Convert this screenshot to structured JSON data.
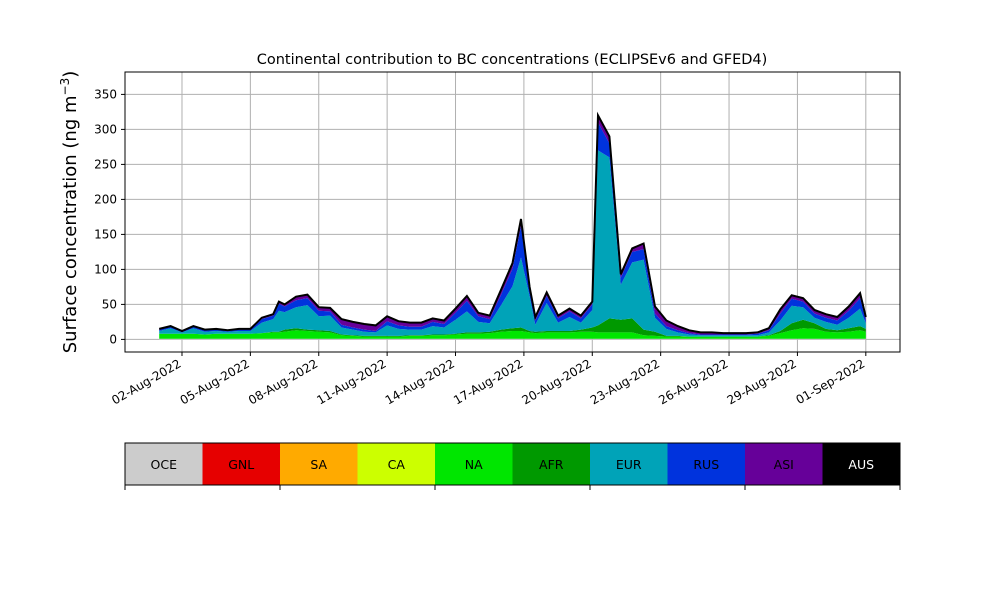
{
  "chart_data": {
    "type": "area",
    "title": "Continental contribution to BC concentrations (ECLIPSEv6 and GFED4)",
    "ylabel": "Surface concentration (ng m",
    "ylabel_sup": "−3",
    "ylabel_close": ")",
    "xlabel": "",
    "stacked": true,
    "grid": true,
    "ylim": [
      -18,
      382
    ],
    "xlim": [
      "2022-07-30T12:00",
      "2022-09-02T12:00"
    ],
    "yticks": [
      0,
      50,
      100,
      150,
      200,
      250,
      300,
      350
    ],
    "xticks": [
      "02-Aug-2022",
      "05-Aug-2022",
      "08-Aug-2022",
      "11-Aug-2022",
      "14-Aug-2022",
      "17-Aug-2022",
      "20-Aug-2022",
      "23-Aug-2022",
      "26-Aug-2022",
      "29-Aug-2022",
      "01-Sep-2022"
    ],
    "xtick_dates": [
      "2022-08-02",
      "2022-08-05",
      "2022-08-08",
      "2022-08-11",
      "2022-08-14",
      "2022-08-17",
      "2022-08-20",
      "2022-08-23",
      "2022-08-26",
      "2022-08-29",
      "2022-09-01"
    ],
    "legend": {
      "placement": "below",
      "entries": [
        {
          "name": "OCE",
          "color": "#cccccc",
          "text_color": "#000000"
        },
        {
          "name": "GNL",
          "color": "#e60000",
          "text_color": "#000000"
        },
        {
          "name": "SA",
          "color": "#ffaa00",
          "text_color": "#000000"
        },
        {
          "name": "CA",
          "color": "#ccff00",
          "text_color": "#000000"
        },
        {
          "name": "NA",
          "color": "#00e600",
          "text_color": "#000000"
        },
        {
          "name": "AFR",
          "color": "#009900",
          "text_color": "#000000"
        },
        {
          "name": "EUR",
          "color": "#00a3b8",
          "text_color": "#000000"
        },
        {
          "name": "RUS",
          "color": "#0033dd",
          "text_color": "#000000"
        },
        {
          "name": "ASI",
          "color": "#660099",
          "text_color": "#000000"
        },
        {
          "name": "AUS",
          "color": "#000000",
          "text_color": "#ffffff"
        }
      ]
    },
    "x": [
      "2022-08-01T00:00",
      "2022-08-01T12:00",
      "2022-08-02T00:00",
      "2022-08-02T12:00",
      "2022-08-03T00:00",
      "2022-08-03T12:00",
      "2022-08-04T00:00",
      "2022-08-04T12:00",
      "2022-08-05T00:00",
      "2022-08-05T12:00",
      "2022-08-06T00:00",
      "2022-08-06T06:00",
      "2022-08-06T12:00",
      "2022-08-07T00:00",
      "2022-08-07T12:00",
      "2022-08-08T00:00",
      "2022-08-08T12:00",
      "2022-08-09T00:00",
      "2022-08-09T12:00",
      "2022-08-10T00:00",
      "2022-08-10T12:00",
      "2022-08-11T00:00",
      "2022-08-11T12:00",
      "2022-08-12T00:00",
      "2022-08-12T12:00",
      "2022-08-13T00:00",
      "2022-08-13T12:00",
      "2022-08-14T00:00",
      "2022-08-14T12:00",
      "2022-08-15T00:00",
      "2022-08-15T12:00",
      "2022-08-16T00:00",
      "2022-08-16T12:00",
      "2022-08-16T21:00",
      "2022-08-17T06:00",
      "2022-08-17T12:00",
      "2022-08-18T00:00",
      "2022-08-18T12:00",
      "2022-08-19T00:00",
      "2022-08-19T12:00",
      "2022-08-20T00:00",
      "2022-08-20T06:00",
      "2022-08-20T18:00",
      "2022-08-21T06:00",
      "2022-08-21T18:00",
      "2022-08-22T06:00",
      "2022-08-22T18:00",
      "2022-08-23T06:00",
      "2022-08-23T18:00",
      "2022-08-24T06:00",
      "2022-08-24T18:00",
      "2022-08-25T06:00",
      "2022-08-25T18:00",
      "2022-08-26T06:00",
      "2022-08-26T18:00",
      "2022-08-27T06:00",
      "2022-08-27T18:00",
      "2022-08-28T06:00",
      "2022-08-28T18:00",
      "2022-08-29T06:00",
      "2022-08-29T18:00",
      "2022-08-30T06:00",
      "2022-08-30T18:00",
      "2022-08-31T06:00",
      "2022-08-31T18:00",
      "2022-09-01T00:00"
    ],
    "series": [
      {
        "name": "OCE",
        "values": [
          1,
          1,
          1,
          1,
          1,
          1,
          1,
          1,
          1,
          1,
          1,
          1,
          1,
          1,
          1,
          1,
          1,
          1,
          1,
          1,
          1,
          1,
          1,
          1,
          1,
          1,
          1,
          1,
          1,
          1,
          1,
          1,
          1,
          1,
          1,
          1,
          1,
          1,
          1,
          1,
          1,
          1,
          1,
          1,
          1,
          1,
          1,
          1,
          1,
          1,
          1,
          1,
          1,
          1,
          1,
          1,
          1,
          1,
          1,
          1,
          1,
          1,
          1,
          1,
          1,
          1
        ]
      },
      {
        "name": "GNL",
        "values": [
          0,
          0,
          0,
          0,
          0,
          0,
          0,
          0,
          0,
          0,
          0,
          0,
          0,
          0,
          0,
          0,
          0,
          0,
          0,
          0,
          0,
          0,
          0,
          0,
          0,
          0,
          0,
          0,
          0,
          0,
          0,
          0,
          0,
          0,
          0,
          0,
          0,
          0,
          0,
          0,
          0,
          0,
          0,
          0,
          0,
          0,
          0,
          0,
          0,
          0,
          0,
          0,
          0,
          0,
          0,
          0,
          0,
          0,
          0,
          0,
          0,
          0,
          0,
          0,
          0,
          0
        ]
      },
      {
        "name": "SA",
        "values": [
          0,
          0,
          0,
          0,
          0,
          0,
          0,
          0,
          0,
          0,
          0,
          0,
          0,
          0,
          0,
          0,
          0,
          0,
          0,
          0,
          0,
          0,
          0,
          0,
          0,
          0,
          0,
          0,
          0,
          0,
          0,
          0,
          0,
          0,
          0,
          0,
          0,
          0,
          0,
          0,
          0,
          0,
          0,
          0,
          0,
          0,
          0,
          0,
          0,
          0,
          0,
          0,
          0,
          0,
          0,
          0,
          0,
          0,
          0,
          0,
          0,
          0,
          0,
          0,
          0,
          0
        ]
      },
      {
        "name": "CA",
        "values": [
          0,
          0,
          0,
          0,
          0,
          0,
          0,
          0,
          0,
          0,
          0,
          0,
          0,
          0,
          0,
          0,
          0,
          0,
          0,
          0,
          0,
          0,
          0,
          0,
          0,
          0,
          0,
          0,
          0,
          0,
          0,
          0,
          0,
          0,
          0,
          0,
          0,
          0,
          0,
          0,
          0,
          0,
          0,
          0,
          0,
          0,
          0,
          0,
          0,
          0,
          0,
          0,
          0,
          0,
          0,
          0,
          0,
          0,
          0,
          0,
          0,
          0,
          0,
          0,
          0,
          0
        ]
      },
      {
        "name": "NA",
        "values": [
          7,
          7,
          7,
          7,
          6,
          7,
          7,
          7,
          7,
          8,
          9,
          9,
          10,
          12,
          11,
          10,
          9,
          5,
          4,
          3,
          3,
          3,
          3,
          4,
          4,
          5,
          5,
          6,
          7,
          7,
          8,
          10,
          11,
          11,
          9,
          8,
          9,
          9,
          9,
          10,
          10,
          9,
          9,
          9,
          9,
          5,
          4,
          3,
          3,
          3,
          3,
          3,
          3,
          3,
          3,
          3,
          4,
          8,
          12,
          15,
          14,
          10,
          9,
          10,
          12,
          10
        ]
      },
      {
        "name": "AFR",
        "values": [
          0,
          0,
          0,
          0,
          0,
          0,
          0,
          0,
          0,
          0,
          1,
          1,
          3,
          3,
          2,
          2,
          2,
          1,
          1,
          1,
          1,
          1,
          1,
          1,
          1,
          1,
          1,
          1,
          2,
          2,
          2,
          3,
          4,
          5,
          2,
          2,
          2,
          2,
          2,
          3,
          6,
          10,
          20,
          18,
          20,
          8,
          6,
          1,
          1,
          0,
          0,
          0,
          0,
          0,
          0,
          0,
          1,
          3,
          10,
          12,
          8,
          4,
          3,
          5,
          6,
          4
        ]
      },
      {
        "name": "EUR",
        "values": [
          4,
          8,
          2,
          8,
          4,
          4,
          3,
          4,
          4,
          15,
          18,
          30,
          25,
          30,
          35,
          20,
          22,
          10,
          8,
          6,
          5,
          15,
          10,
          8,
          8,
          12,
          10,
          20,
          30,
          15,
          12,
          35,
          60,
          100,
          50,
          10,
          40,
          12,
          20,
          10,
          25,
          250,
          230,
          50,
          80,
          100,
          20,
          10,
          5,
          3,
          2,
          2,
          2,
          2,
          2,
          2,
          4,
          15,
          25,
          18,
          8,
          10,
          8,
          15,
          25,
          8
        ]
      },
      {
        "name": "RUS",
        "values": [
          2,
          2,
          1,
          2,
          2,
          2,
          1,
          2,
          2,
          5,
          5,
          10,
          8,
          10,
          10,
          8,
          6,
          4,
          3,
          3,
          2,
          6,
          5,
          4,
          4,
          6,
          5,
          10,
          15,
          8,
          6,
          15,
          25,
          45,
          8,
          6,
          10,
          6,
          8,
          6,
          8,
          40,
          20,
          10,
          15,
          15,
          6,
          4,
          3,
          2,
          1,
          1,
          1,
          1,
          1,
          2,
          3,
          10,
          10,
          8,
          6,
          6,
          6,
          10,
          15,
          5
        ]
      },
      {
        "name": "ASI",
        "values": [
          1,
          1,
          1,
          1,
          1,
          1,
          1,
          1,
          1,
          2,
          2,
          3,
          3,
          5,
          5,
          5,
          5,
          8,
          8,
          8,
          8,
          7,
          6,
          6,
          6,
          5,
          5,
          6,
          6,
          5,
          5,
          7,
          8,
          10,
          5,
          5,
          5,
          4,
          4,
          4,
          4,
          10,
          10,
          5,
          5,
          8,
          10,
          8,
          6,
          4,
          3,
          3,
          2,
          2,
          2,
          2,
          3,
          6,
          5,
          5,
          5,
          5,
          5,
          6,
          7,
          4
        ]
      },
      {
        "name": "AUS",
        "values": [
          0,
          0,
          0,
          0,
          0,
          0,
          0,
          0,
          0,
          0,
          0,
          0,
          0,
          0,
          0,
          0,
          0,
          0,
          0,
          0,
          0,
          0,
          0,
          0,
          0,
          0,
          0,
          0,
          0,
          0,
          0,
          0,
          0,
          0,
          0,
          0,
          0,
          0,
          0,
          0,
          0,
          0,
          0,
          0,
          0,
          0,
          0,
          0,
          0,
          0,
          0,
          0,
          0,
          0,
          0,
          0,
          0,
          0,
          0,
          0,
          0,
          0,
          0,
          0,
          0,
          0
        ]
      }
    ],
    "total": [
      15,
      19,
      12,
      19,
      14,
      15,
      13,
      15,
      15,
      31,
      36,
      54,
      50,
      61,
      64,
      46,
      45,
      29,
      25,
      22,
      20,
      33,
      26,
      24,
      24,
      30,
      27,
      44,
      62,
      38,
      34,
      71,
      109,
      172,
      75,
      32,
      67,
      34,
      44,
      34,
      54,
      320,
      290,
      93,
      130,
      137,
      47,
      27,
      19,
      13,
      10,
      10,
      9,
      9,
      9,
      10,
      16,
      43,
      63,
      59,
      42,
      36,
      32,
      47,
      66,
      32
    ]
  }
}
